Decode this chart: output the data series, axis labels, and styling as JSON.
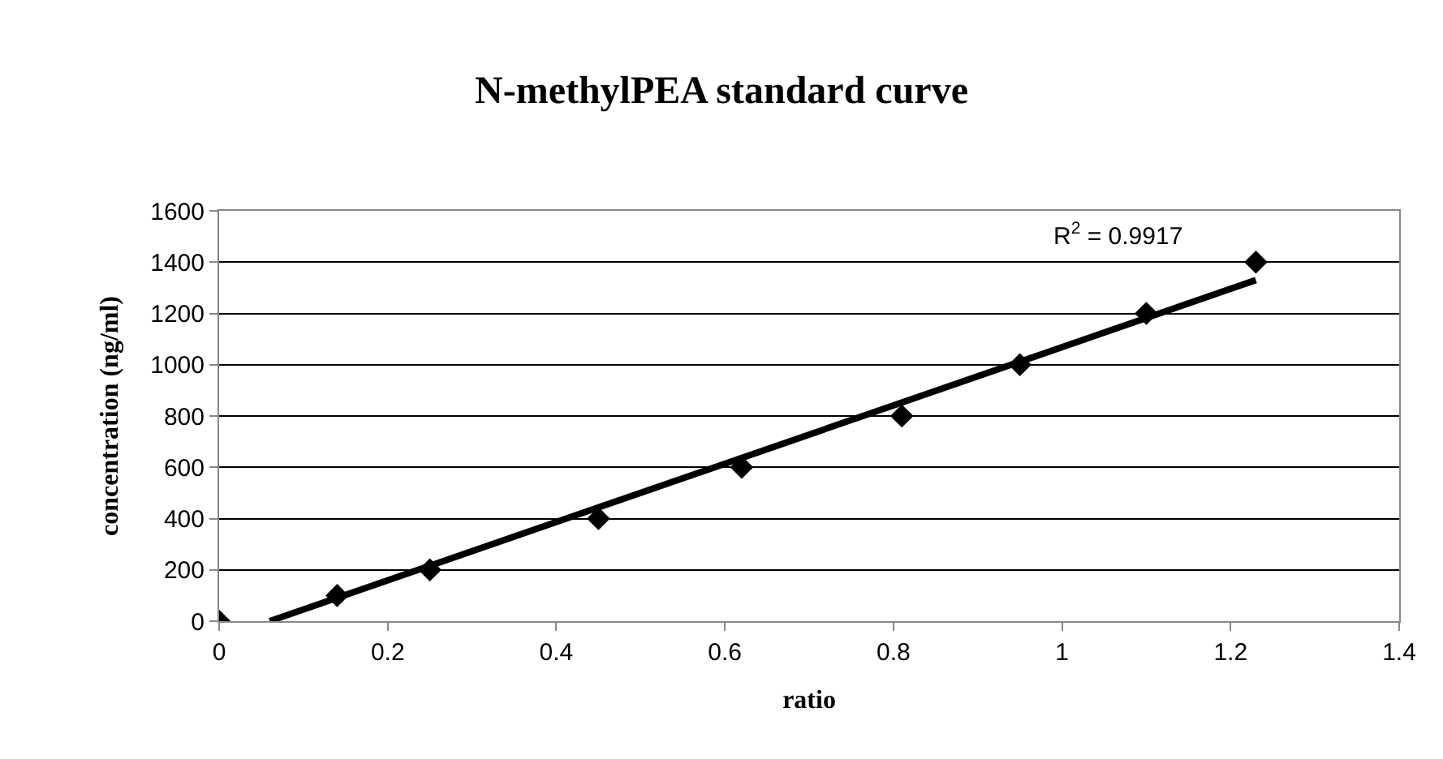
{
  "chart_data": {
    "type": "scatter",
    "title": "N-methylPEA standard curve",
    "xlabel": "ratio",
    "ylabel": "concentration (ng/ml)",
    "series": [
      {
        "color": "#000000",
        "x": [
          0,
          0.14,
          0.25,
          0.45,
          0.62,
          0.81,
          0.95,
          1.1,
          1.23
        ],
        "values": [
          0,
          100,
          200,
          400,
          600,
          800,
          1000,
          1200,
          1400
        ]
      },
      {
        "type": "line",
        "marker": "none",
        "color": "#000000",
        "x": [
          0.06,
          1.23
        ],
        "values": [
          0,
          1330
        ]
      }
    ],
    "annotations": [
      "R$^{2}$ = 0.9917"
    ],
    "xlim": [
      0,
      1.4
    ],
    "xticks": [
      0,
      0.2,
      0.4,
      0.6,
      0.8,
      1,
      1.2,
      1.4
    ],
    "ylim": [
      0,
      1600
    ],
    "yticks": [
      0,
      200,
      400,
      600,
      800,
      1000,
      1200,
      1400,
      1600
    ],
    "grid": "y",
    "legend": false,
    "marker": "diamond"
  }
}
